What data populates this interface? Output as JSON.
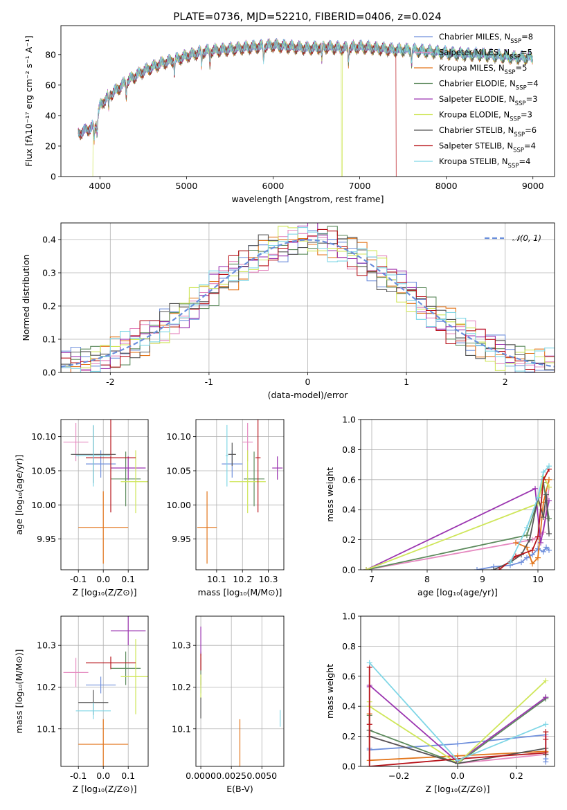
{
  "figure": {
    "title": "PLATE=0736, MJD=52210, FIBERID=0406, z=0.024",
    "normal_legend": "𝒩(0, 1)"
  },
  "models": [
    {
      "name": "Chabrier MILES, N_SSP=8",
      "legend": "Chabrier MILES, N",
      "nssp": "=8",
      "color": "#6f8fdc"
    },
    {
      "name": "Salpeter MILES, N_SSP=5",
      "legend": "Salpeter MILES, N",
      "nssp": "=5",
      "color": "#e58ac0"
    },
    {
      "name": "Kroupa MILES, N_SSP=5",
      "legend": "Kroupa MILES, N",
      "nssp": "=5",
      "color": "#e3761c"
    },
    {
      "name": "Chabrier ELODIE, N_SSP=4",
      "legend": "Chabrier ELODIE, N",
      "nssp": "=4",
      "color": "#5c8a5c"
    },
    {
      "name": "Salpeter ELODIE, N_SSP=3",
      "legend": "Salpeter ELODIE, N",
      "nssp": "=3",
      "color": "#9b35b0"
    },
    {
      "name": "Kroupa ELODIE, N_SSP=3",
      "legend": "Kroupa ELODIE, N",
      "nssp": "=3",
      "color": "#cfe65a"
    },
    {
      "name": "Chabrier STELIB, N_SSP=6",
      "legend": "Chabrier STELIB, N",
      "nssp": "=6",
      "color": "#555555"
    },
    {
      "name": "Salpeter STELIB, N_SSP=4",
      "legend": "Salpeter STELIB, N",
      "nssp": "=4",
      "color": "#b8141b"
    },
    {
      "name": "Kroupa STELIB, N_SSP=4",
      "legend": "Kroupa STELIB, N",
      "nssp": "=4",
      "color": "#7fd6e6"
    }
  ],
  "chart_data": [
    {
      "id": "spectrum",
      "type": "line",
      "xlabel": "wavelength [Angstrom, rest frame]",
      "ylabel": "Flux [fλ10⁻¹⁷ erg cm⁻² s⁻¹ A⁻¹]",
      "xlim": [
        3550,
        9250
      ],
      "ylim": [
        0,
        99
      ],
      "xticks": [
        4000,
        5000,
        6000,
        7000,
        8000,
        9000
      ],
      "yticks": [
        0,
        20,
        40,
        60,
        80
      ],
      "grid": false,
      "legend_position": "top-right",
      "continuum": {
        "x": [
          3750,
          3900,
          3950,
          4000,
          4100,
          4200,
          4300,
          4500,
          4700,
          4900,
          5000,
          5200,
          5400,
          5600,
          5800,
          6000,
          6200,
          6400,
          6600,
          6800,
          7000,
          7200,
          7400,
          7600,
          7800,
          8000,
          8200,
          8400,
          8600,
          8800,
          9000
        ],
        "y": [
          28,
          32,
          33,
          46,
          53,
          57,
          62,
          69,
          74,
          77,
          79,
          82,
          83,
          84,
          85,
          86,
          85,
          84,
          85,
          84,
          85,
          84,
          83,
          83,
          82,
          81,
          80,
          80,
          79,
          78,
          78
        ]
      },
      "dropouts": [
        {
          "series": "Kroupa ELODIE, N_SSP=3",
          "from": 3750,
          "to": 3920
        },
        {
          "series": "Kroupa ELODIE, N_SSP=3",
          "from": 6790,
          "to": 6800
        },
        {
          "series": "Salpeter STELIB, N_SSP=4",
          "from": 7420,
          "to": 9000
        }
      ]
    },
    {
      "id": "residual_hist",
      "type": "histogram",
      "xlabel": "(data-model)/error",
      "ylabel": "Normed distribution",
      "xlim": [
        -2.5,
        2.5
      ],
      "ylim": [
        0,
        0.45
      ],
      "xticks": [
        -2,
        -1,
        0,
        1,
        2
      ],
      "yticks": [
        0.0,
        0.1,
        0.2,
        0.3,
        0.4
      ],
      "grid": true,
      "bin_width": 0.1,
      "legend_position": "top-right",
      "reference_curve": "normal(0,1)"
    },
    {
      "id": "age_vs_z",
      "type": "errorbar",
      "xlabel": "Z [log₁₀(Z/Z⊙)]",
      "ylabel": "age  [log₁₀(age/yr)]",
      "xlim": [
        -0.17,
        0.18
      ],
      "ylim": [
        9.905,
        10.125
      ],
      "xticks": [
        -0.1,
        0.0,
        0.1
      ],
      "yticks": [
        9.95,
        10.0,
        10.05,
        10.1
      ],
      "grid": true,
      "points": [
        {
          "x": -0.01,
          "xerr": 0.06,
          "y": 10.06,
          "yerr": 0.02
        },
        {
          "x": -0.11,
          "xerr": 0.05,
          "y": 10.092,
          "yerr": 0.028
        },
        {
          "x": 0.0,
          "xerr": 0.1,
          "y": 9.967,
          "yerr": 0.053
        },
        {
          "x": 0.09,
          "xerr": 0.06,
          "y": 10.038,
          "yerr": 0.04
        },
        {
          "x": 0.1,
          "xerr": 0.07,
          "y": 10.054,
          "yerr": 0.017
        },
        {
          "x": 0.13,
          "xerr": 0.06,
          "y": 10.034,
          "yerr": 0.046
        },
        {
          "x": -0.04,
          "xerr": 0.09,
          "y": 10.074,
          "yerr": 0.042
        },
        {
          "x": 0.03,
          "xerr": 0.1,
          "y": 10.069,
          "yerr": 0.08
        },
        {
          "x": -0.04,
          "xerr": 0.07,
          "y": 10.072,
          "yerr": 0.045
        }
      ]
    },
    {
      "id": "age_vs_mass",
      "type": "errorbar",
      "xlabel": "mass [log₁₀(M/M⊙)]",
      "ylabel": "",
      "xlim": [
        10.02,
        10.36
      ],
      "ylim": [
        9.905,
        10.125
      ],
      "xticks": [
        10.1,
        10.2,
        10.3
      ],
      "yticks": [
        9.95,
        10.0,
        10.05,
        10.1
      ],
      "grid": true,
      "points": [
        {
          "x": 10.16,
          "xerr": 0.04,
          "y": 10.06,
          "yerr": 0.02
        },
        {
          "x": 10.22,
          "xerr": 0.02,
          "y": 10.092,
          "yerr": 0.028
        },
        {
          "x": 10.063,
          "xerr": 0.038,
          "y": 9.967,
          "yerr": 0.053
        },
        {
          "x": 10.245,
          "xerr": 0.04,
          "y": 10.038,
          "yerr": 0.04
        },
        {
          "x": 10.335,
          "xerr": 0.02,
          "y": 10.054,
          "yerr": 0.017
        },
        {
          "x": 10.22,
          "xerr": 0.07,
          "y": 10.034,
          "yerr": 0.046
        },
        {
          "x": 10.16,
          "xerr": 0.015,
          "y": 10.074,
          "yerr": 0.017
        },
        {
          "x": 10.26,
          "xerr": 0.01,
          "y": 10.069,
          "yerr": 0.08
        },
        {
          "x": 10.14,
          "xerr": 0.005,
          "y": 10.072,
          "yerr": 0.045
        }
      ]
    },
    {
      "id": "weight_vs_age",
      "type": "line",
      "xlabel": "age  [log₁₀(age/yr)]",
      "ylabel": "mass weight",
      "xlim": [
        6.8,
        10.3
      ],
      "ylim": [
        0.0,
        1.0
      ],
      "xticks": [
        7,
        8,
        9,
        10
      ],
      "yticks": [
        0.0,
        0.2,
        0.4,
        0.6,
        0.8,
        1.0
      ],
      "grid": true,
      "series": [
        {
          "x": [
            8.9,
            9.2,
            9.5,
            9.7,
            9.8,
            9.9,
            10.0,
            10.1,
            10.15,
            10.2
          ],
          "y": [
            0.0,
            0.02,
            0.03,
            0.05,
            0.08,
            0.1,
            0.14,
            0.12,
            0.15,
            0.13
          ]
        },
        {
          "x": [
            6.9,
            9.9,
            10.1,
            10.2
          ],
          "y": [
            0.0,
            0.2,
            0.25,
            0.55
          ]
        },
        {
          "x": [
            9.6,
            9.8,
            9.9,
            10.0,
            10.1,
            10.2
          ],
          "y": [
            0.18,
            0.15,
            0.04,
            0.08,
            0.45,
            0.6
          ]
        },
        {
          "x": [
            6.9,
            9.8,
            10.1,
            10.2
          ],
          "y": [
            0.0,
            0.23,
            0.58,
            0.34
          ]
        },
        {
          "x": [
            6.9,
            9.95,
            10.05,
            10.2
          ],
          "y": [
            0.0,
            0.54,
            0.18,
            0.46
          ]
        },
        {
          "x": [
            6.9,
            10.0,
            10.1,
            10.2
          ],
          "y": [
            0.0,
            0.44,
            0.62,
            0.55
          ]
        },
        {
          "x": [
            9.2,
            9.5,
            9.7,
            9.85,
            10.0,
            10.1,
            10.15,
            10.2
          ],
          "y": [
            0.0,
            0.05,
            0.1,
            0.2,
            0.48,
            0.35,
            0.5,
            0.24
          ]
        },
        {
          "x": [
            9.3,
            9.6,
            9.9,
            10.0,
            10.1,
            10.2
          ],
          "y": [
            0.0,
            0.09,
            0.13,
            0.22,
            0.6,
            0.67
          ]
        },
        {
          "x": [
            9.5,
            9.8,
            10.0,
            10.1,
            10.2
          ],
          "y": [
            0.05,
            0.28,
            0.48,
            0.65,
            0.69
          ]
        }
      ]
    },
    {
      "id": "mass_vs_z",
      "type": "errorbar",
      "xlabel": "Z [log₁₀(Z/Z⊙)]",
      "ylabel": "mass [log₁₀(M/M⊙)]",
      "xlim": [
        -0.17,
        0.18
      ],
      "ylim": [
        10.01,
        10.37
      ],
      "xticks": [
        -0.1,
        0.0,
        0.1
      ],
      "yticks": [
        10.1,
        10.2,
        10.3
      ],
      "grid": true,
      "points": [
        {
          "x": -0.01,
          "xerr": 0.06,
          "y": 10.205,
          "yerr": 0.02
        },
        {
          "x": -0.11,
          "xerr": 0.05,
          "y": 10.235,
          "yerr": 0.035
        },
        {
          "x": 0.0,
          "xerr": 0.1,
          "y": 10.063,
          "yerr": 0.06
        },
        {
          "x": 0.09,
          "xerr": 0.06,
          "y": 10.245,
          "yerr": 0.04
        },
        {
          "x": 0.1,
          "xerr": 0.07,
          "y": 10.335,
          "yerr": 0.035
        },
        {
          "x": 0.13,
          "xerr": 0.06,
          "y": 10.225,
          "yerr": 0.09
        },
        {
          "x": -0.04,
          "xerr": 0.06,
          "y": 10.163,
          "yerr": 0.03
        },
        {
          "x": 0.03,
          "xerr": 0.1,
          "y": 10.258,
          "yerr": 0.015
        },
        {
          "x": -0.04,
          "xerr": 0.07,
          "y": 10.143,
          "yerr": 0.02
        }
      ]
    },
    {
      "id": "mass_vs_ebv",
      "type": "errorbar",
      "xlabel": "E(B-V)",
      "ylabel": "",
      "xlim": [
        -0.0004,
        0.0068
      ],
      "ylim": [
        10.01,
        10.37
      ],
      "xticks": [
        0.0,
        0.0025,
        0.005
      ],
      "xticklabels": [
        "0.0000",
        "0.0025",
        "0.0050"
      ],
      "yticks": [
        10.1,
        10.2,
        10.3
      ],
      "grid": true,
      "points": [
        {
          "x": 0.0,
          "xerr": 0.0,
          "y": 10.205,
          "yerr": 0.02
        },
        {
          "x": 0.0,
          "xerr": 0.0,
          "y": 10.235,
          "yerr": 0.035
        },
        {
          "x": 0.0032,
          "xerr": 0.0,
          "y": 10.063,
          "yerr": 0.06
        },
        {
          "x": 0.0,
          "xerr": 0.0,
          "y": 10.245,
          "yerr": 0.04
        },
        {
          "x": 0.0,
          "xerr": 0.0,
          "y": 10.31,
          "yerr": 0.035
        },
        {
          "x": 0.0,
          "xerr": 0.0,
          "y": 10.2,
          "yerr": 0.03
        },
        {
          "x": 0.0,
          "xerr": 0.0,
          "y": 10.15,
          "yerr": 0.025
        },
        {
          "x": 0.0,
          "xerr": 0.0,
          "y": 10.26,
          "yerr": 0.02
        },
        {
          "x": 0.0065,
          "xerr": 0.0,
          "y": 10.125,
          "yerr": 0.02
        }
      ]
    },
    {
      "id": "weight_vs_z",
      "type": "line",
      "xlabel": "Z [log₁₀(Z/Z⊙)]",
      "ylabel": "mass weight",
      "xlim": [
        -0.33,
        0.33
      ],
      "ylim": [
        0.0,
        1.0
      ],
      "xticks": [
        -0.2,
        0.0,
        0.2
      ],
      "yticks": [
        0.0,
        0.2,
        0.4,
        0.6,
        0.8,
        1.0
      ],
      "grid": true,
      "series": [
        {
          "x": [
            -0.3,
            -0.3,
            0.0,
            0.3,
            0.3,
            0.3
          ],
          "y": [
            0.12,
            0.11,
            0.15,
            0.21,
            0.05,
            0.03
          ]
        },
        {
          "x": [
            -0.3,
            0.0,
            0.3,
            0.3
          ],
          "y": [
            0.2,
            0.02,
            0.08,
            0.2
          ]
        },
        {
          "x": [
            -0.3,
            -0.3,
            0.0,
            0.3,
            0.3
          ],
          "y": [
            0.35,
            0.04,
            0.07,
            0.1,
            0.08
          ]
        },
        {
          "x": [
            -0.3,
            -0.3,
            0.0,
            0.3,
            0.3
          ],
          "y": [
            0.34,
            0.24,
            0.02,
            0.45,
            0.46
          ]
        },
        {
          "x": [
            -0.3,
            -0.3,
            0.0,
            0.3
          ],
          "y": [
            0.53,
            0.54,
            0.03,
            0.46
          ]
        },
        {
          "x": [
            -0.3,
            -0.3,
            0.0,
            0.3
          ],
          "y": [
            0.43,
            0.4,
            0.02,
            0.57
          ]
        },
        {
          "x": [
            -0.3,
            -0.3,
            0.0,
            0.3,
            0.3
          ],
          "y": [
            0.24,
            0.2,
            0.02,
            0.12,
            0.08
          ]
        },
        {
          "x": [
            -0.3,
            -0.3,
            -0.3,
            0.0,
            0.3,
            0.3,
            0.3
          ],
          "y": [
            0.66,
            0.28,
            0.0,
            0.05,
            0.09,
            0.23,
            0.18
          ]
        },
        {
          "x": [
            -0.3,
            0.0,
            0.3
          ],
          "y": [
            0.69,
            0.04,
            0.28
          ]
        }
      ]
    }
  ]
}
